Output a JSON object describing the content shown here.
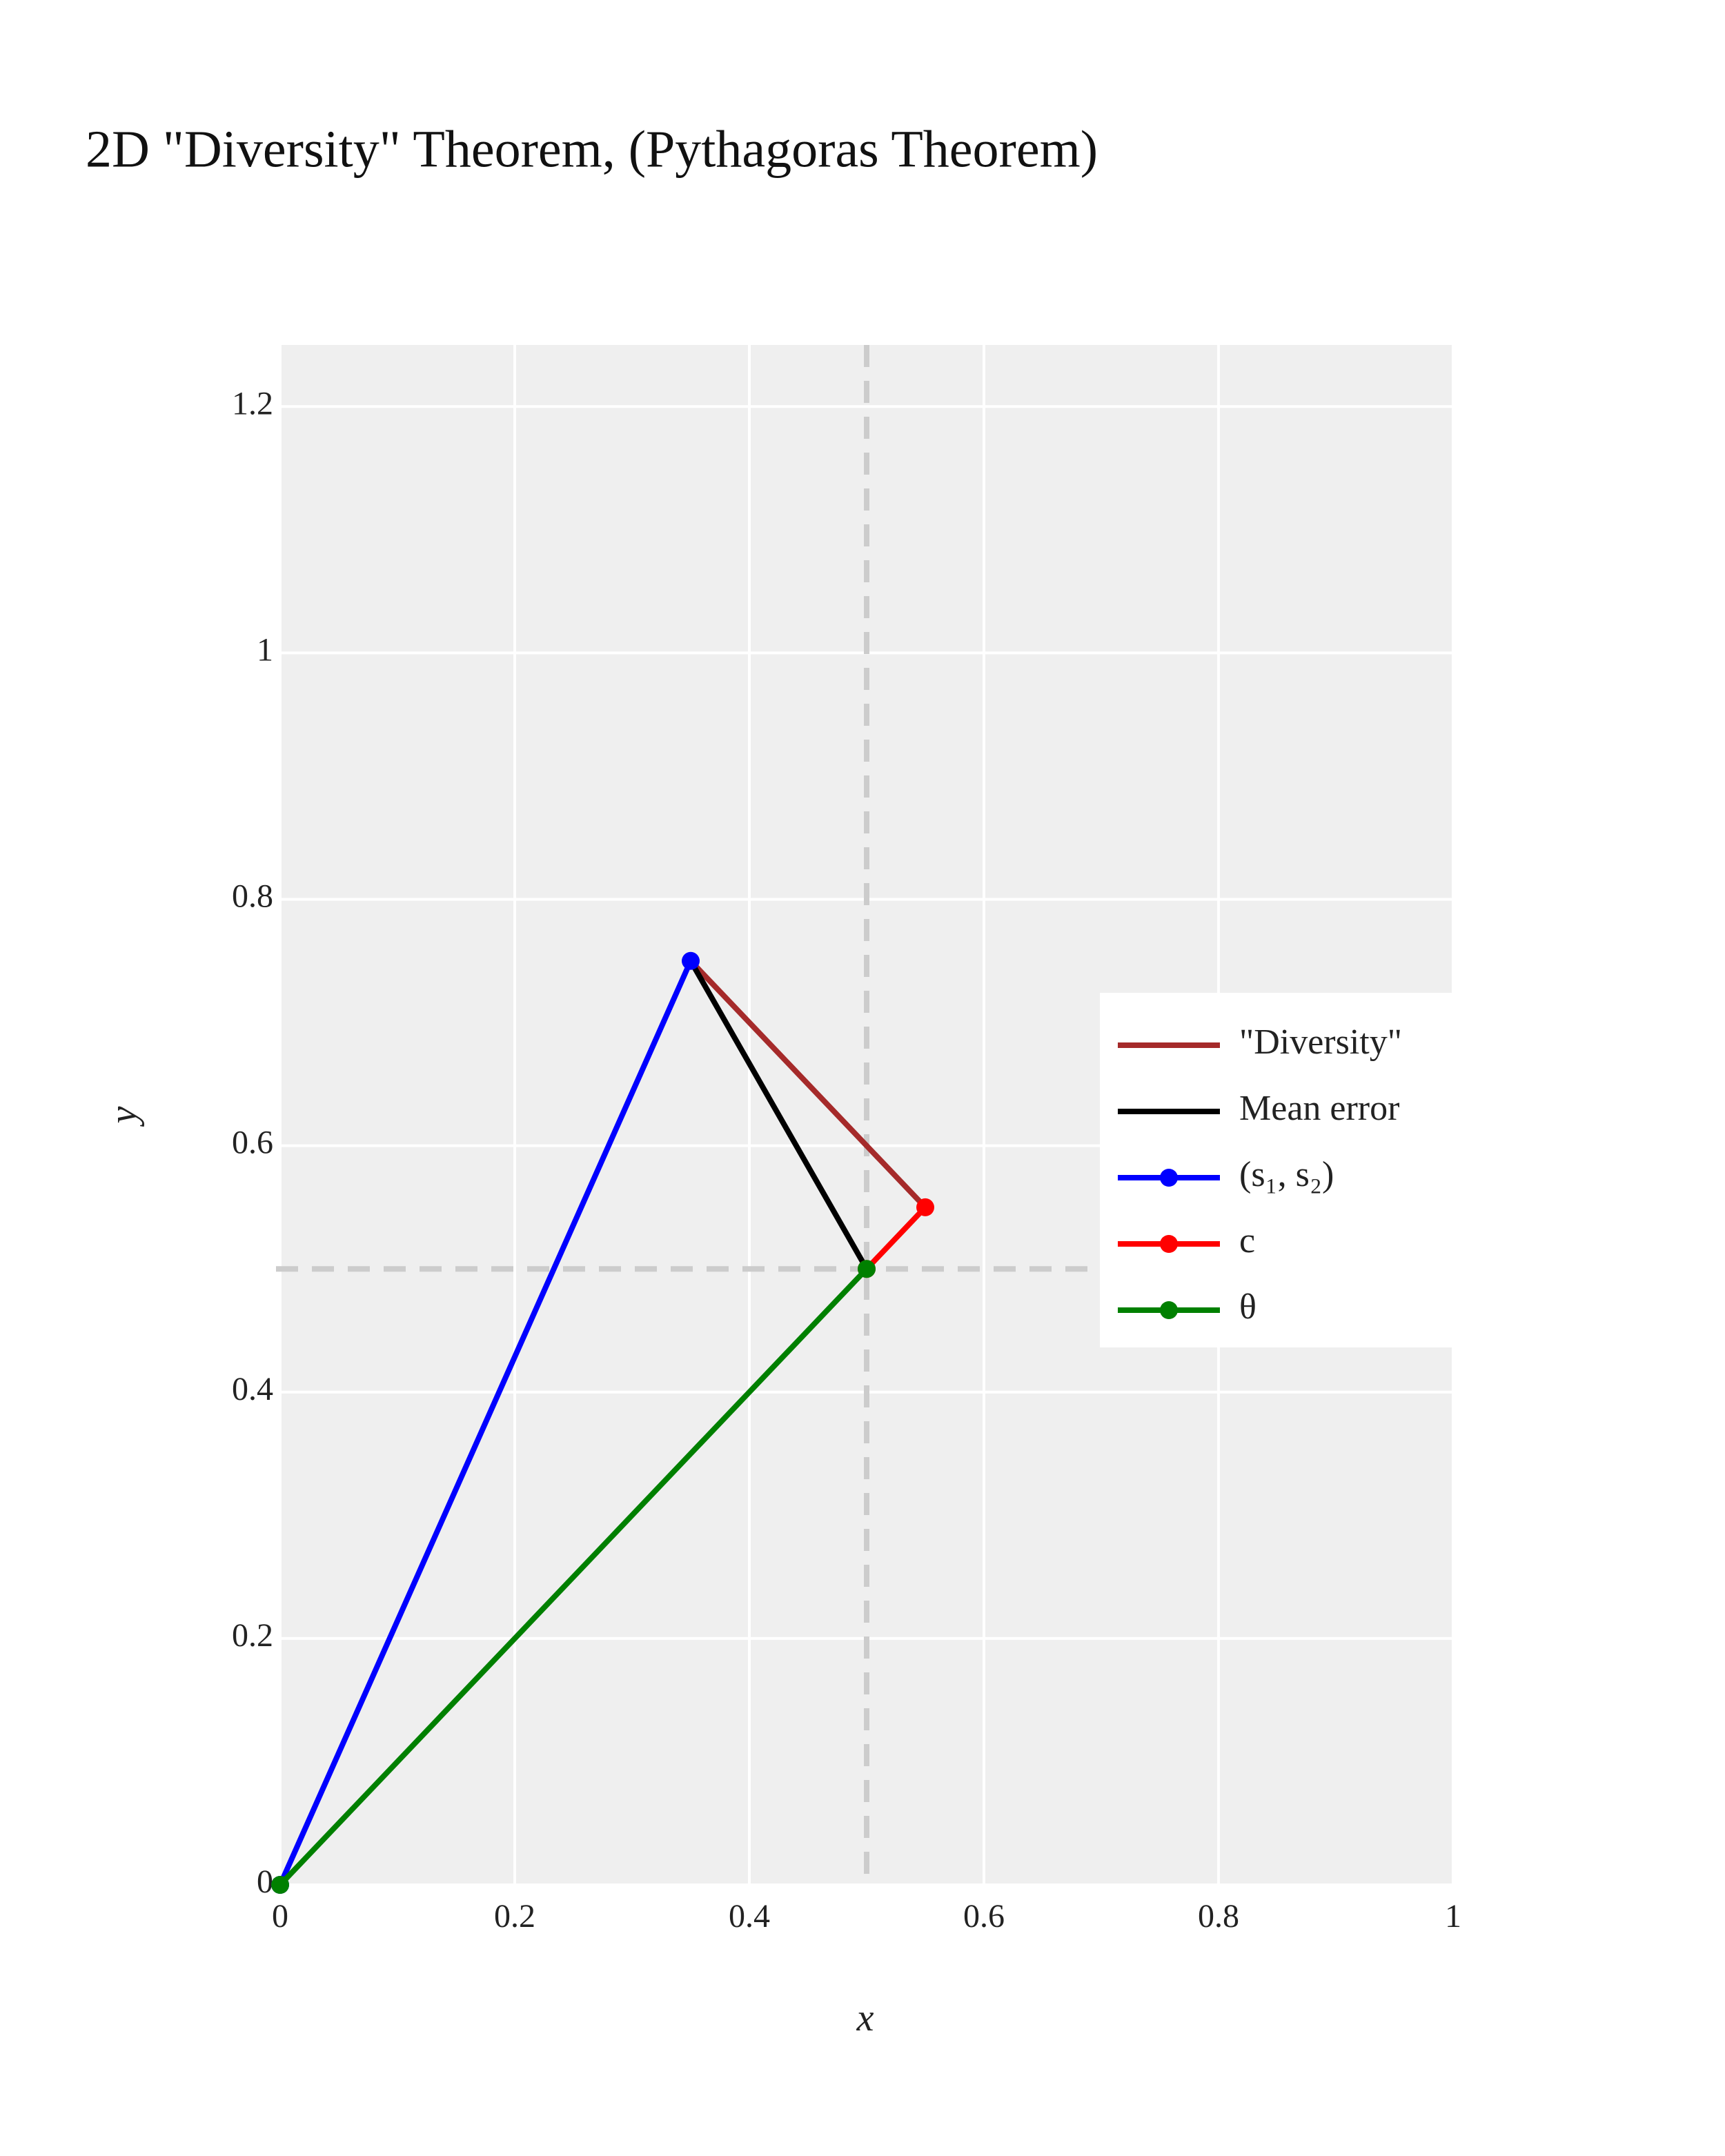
{
  "chart_data": {
    "type": "line",
    "title": "2D \"Diversity\" Theorem, (Pythagoras Theorem)",
    "x_label": "x",
    "y_label": "y",
    "xlim": [
      0,
      1
    ],
    "ylim": [
      0,
      1.25
    ],
    "xticks": [
      0,
      0.2,
      0.4,
      0.6,
      0.8,
      1
    ],
    "yticks": [
      0,
      0.2,
      0.4,
      0.6,
      0.8,
      1,
      1.2
    ],
    "grid": true,
    "legend": "right",
    "vlines": [
      0.5
    ],
    "hlines": [
      0.5
    ],
    "series": [
      {
        "name": "\"Diversity\"",
        "color": "#a52a2a",
        "markers": false,
        "x": [
          0.35,
          0.55
        ],
        "values": [
          0.75,
          0.55
        ]
      },
      {
        "name": "Mean error",
        "color": "#000000",
        "markers": false,
        "x": [
          0.35,
          0.5
        ],
        "values": [
          0.75,
          0.5
        ]
      },
      {
        "name": "(s₁, s₂)",
        "color": "#0000ff",
        "markers": true,
        "x": [
          0,
          0.35
        ],
        "values": [
          0,
          0.75
        ]
      },
      {
        "name": "c",
        "color": "#ff0000",
        "markers": true,
        "x": [
          0.5,
          0.55
        ],
        "values": [
          0.5,
          0.55
        ]
      },
      {
        "name": "θ",
        "color": "#008000",
        "markers": true,
        "x": [
          0,
          0.5
        ],
        "values": [
          0,
          0.5
        ]
      }
    ]
  }
}
